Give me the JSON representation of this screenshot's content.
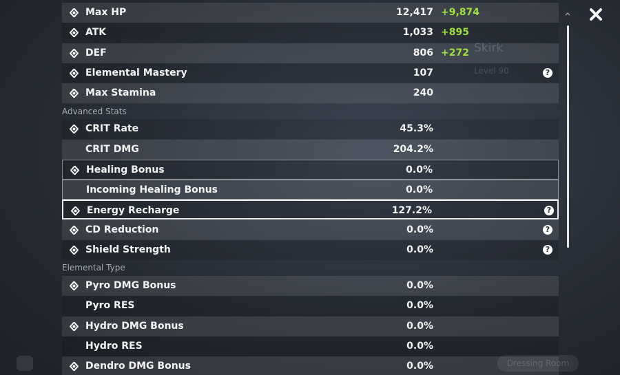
{
  "background": {
    "character_name": "Skirk",
    "level": "Level 90",
    "dressing_room": "Dressing Room"
  },
  "help_icon": "?",
  "stats": [
    {
      "label": "Max HP",
      "value": "12,417",
      "bonus": "+9,874",
      "icon": true
    },
    {
      "label": "ATK",
      "value": "1,033",
      "bonus": "+895",
      "icon": true
    },
    {
      "label": "DEF",
      "value": "806",
      "bonus": "+272",
      "icon": true
    },
    {
      "label": "Elemental Mastery",
      "value": "107",
      "icon": true,
      "help": true
    },
    {
      "label": "Max Stamina",
      "value": "240",
      "icon": true
    }
  ],
  "advanced_stats": {
    "title": "Advanced Stats",
    "rows": [
      {
        "label": "CRIT Rate",
        "value": "45.3%",
        "icon": true
      },
      {
        "label": "CRIT DMG",
        "value": "204.2%"
      },
      {
        "label": "Healing Bonus",
        "value": "0.0%",
        "icon": true,
        "outline": "dim"
      },
      {
        "label": "Incoming Healing Bonus",
        "value": "0.0%",
        "outline": "dim"
      },
      {
        "label": "Energy Recharge",
        "value": "127.2%",
        "icon": true,
        "help": true,
        "outline": "bright"
      },
      {
        "label": "CD Reduction",
        "value": "0.0%",
        "icon": true,
        "help": true
      },
      {
        "label": "Shield Strength",
        "value": "0.0%",
        "icon": true,
        "help": true
      }
    ]
  },
  "elemental_type": {
    "title": "Elemental Type",
    "rows": [
      {
        "label": "Pyro DMG Bonus",
        "value": "0.0%",
        "icon": true
      },
      {
        "label": "Pyro RES",
        "value": "0.0%"
      },
      {
        "label": "Hydro DMG Bonus",
        "value": "0.0%",
        "icon": true
      },
      {
        "label": "Hydro RES",
        "value": "0.0%"
      },
      {
        "label": "Dendro DMG Bonus",
        "value": "0.0%",
        "icon": true
      }
    ]
  }
}
